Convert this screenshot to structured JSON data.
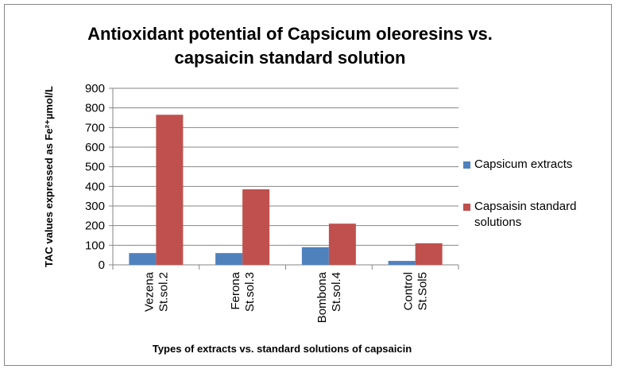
{
  "chart_data": {
    "type": "bar",
    "title": "Antioxidant potential of Capsicum oleoresins vs. capsaicin standard solution",
    "y_label": "TAC values expressed as Fe²⁺µmol/L",
    "x_label": "Types of extracts vs. standard solutions of capsaicin",
    "categories": [
      "Vezena St.sol.2",
      "Ferona St.sol.3",
      "Bombona St.sol.4",
      "Control St.Sol5"
    ],
    "series": [
      {
        "name": "Capsicum extracts",
        "color": "#4f81bd",
        "values": [
          60,
          60,
          90,
          20
        ]
      },
      {
        "name": "Capsaisin standard solutions",
        "color": "#c0504d",
        "values": [
          765,
          385,
          210,
          110
        ]
      }
    ],
    "ylim": [
      0,
      900
    ],
    "yticks": [
      0,
      100,
      200,
      300,
      400,
      500,
      600,
      700,
      800,
      900
    ],
    "grid": true,
    "legend": "right"
  }
}
